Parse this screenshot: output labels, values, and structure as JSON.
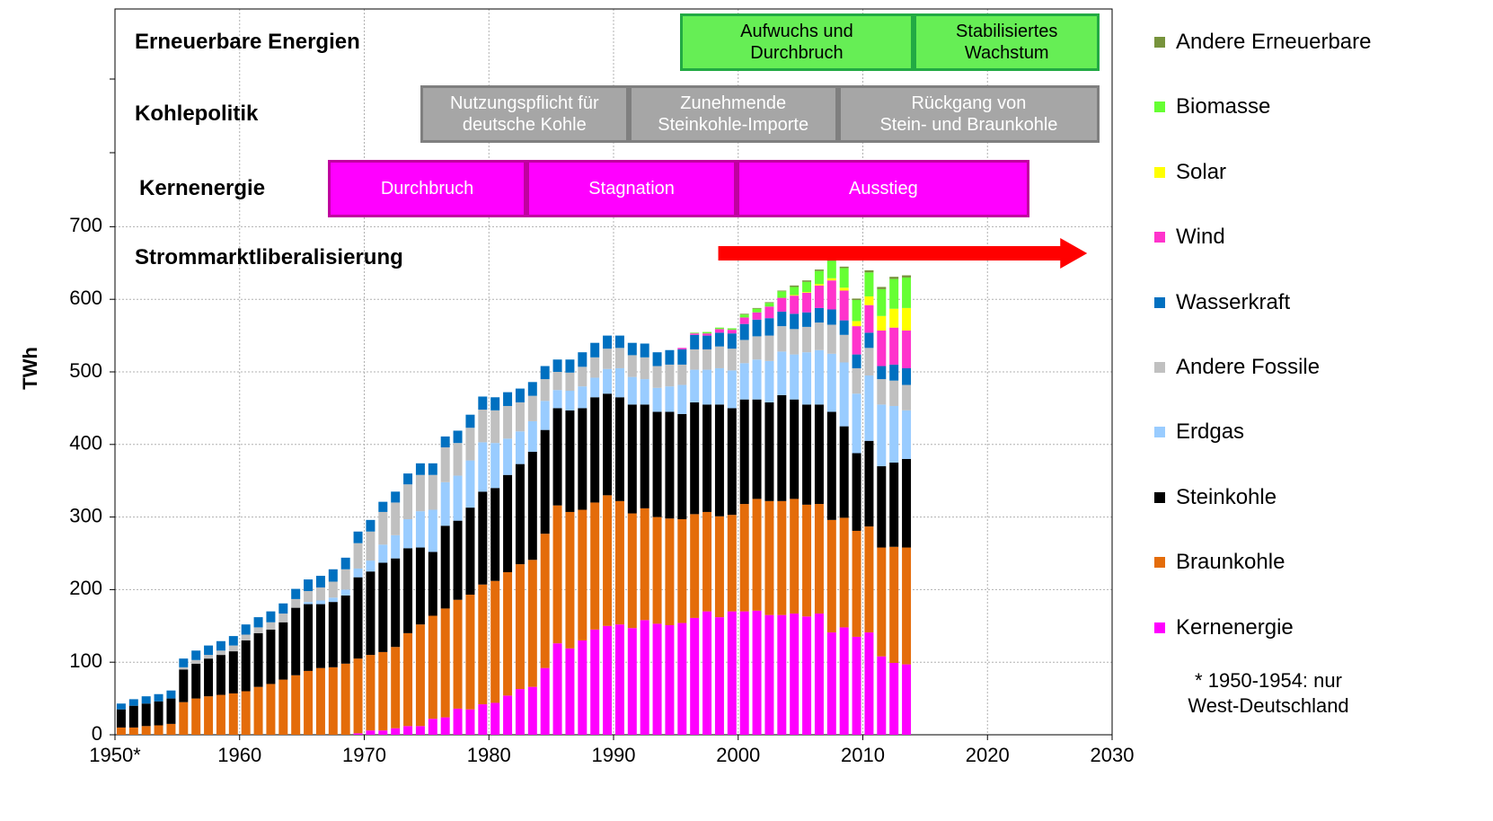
{
  "chart_data": {
    "type": "bar",
    "stacked": true,
    "y_label": "TWh",
    "xlim": [
      1950,
      2030
    ],
    "xticks": [
      {
        "value": 1950,
        "label": "1950*"
      },
      1960,
      1970,
      1980,
      1990,
      2000,
      2010,
      2020,
      2030
    ],
    "ylim": [
      0,
      1000
    ],
    "yticks": [
      0,
      100,
      200,
      300,
      400,
      500,
      600,
      700
    ],
    "grid": true,
    "x": [
      1950,
      1951,
      1952,
      1953,
      1954,
      1955,
      1956,
      1957,
      1958,
      1959,
      1960,
      1961,
      1962,
      1963,
      1964,
      1965,
      1966,
      1967,
      1968,
      1969,
      1970,
      1971,
      1972,
      1973,
      1974,
      1975,
      1976,
      1977,
      1978,
      1979,
      1980,
      1981,
      1982,
      1983,
      1984,
      1985,
      1986,
      1987,
      1988,
      1989,
      1990,
      1991,
      1992,
      1993,
      1994,
      1995,
      1996,
      1997,
      1998,
      1999,
      2000,
      2001,
      2002,
      2003,
      2004,
      2005,
      2006,
      2007,
      2008,
      2009,
      2010,
      2011,
      2012,
      2013
    ],
    "series": [
      {
        "name": "Kernenergie",
        "color": "#ff00ff",
        "values": [
          0,
          0,
          0,
          0,
          0,
          0,
          0,
          0,
          0,
          0,
          0,
          0,
          0,
          0,
          0,
          0,
          0,
          0,
          0,
          2,
          6,
          6,
          9,
          12,
          12,
          22,
          24,
          36,
          35,
          42,
          44,
          54,
          63,
          66,
          92,
          126,
          119,
          130,
          145,
          150,
          152,
          147,
          158,
          153,
          151,
          154,
          161,
          170,
          162,
          170,
          170,
          171,
          165,
          165,
          167,
          163,
          167,
          141,
          148,
          135,
          141,
          108,
          99,
          97
        ]
      },
      {
        "name": "Braunkohle",
        "color": "#e46c0a",
        "values": [
          10,
          10,
          12,
          13,
          15,
          45,
          50,
          53,
          55,
          57,
          60,
          66,
          70,
          76,
          82,
          88,
          92,
          93,
          98,
          103,
          104,
          108,
          112,
          128,
          140,
          142,
          150,
          150,
          158,
          165,
          168,
          170,
          172,
          175,
          185,
          190,
          188,
          180,
          175,
          180,
          170,
          158,
          154,
          147,
          147,
          143,
          143,
          137,
          139,
          133,
          148,
          154,
          157,
          157,
          158,
          154,
          151,
          155,
          151,
          146,
          146,
          150,
          160,
          161
        ]
      },
      {
        "name": "Steinkohle",
        "color": "#000000",
        "values": [
          25,
          30,
          31,
          33,
          35,
          45,
          48,
          52,
          55,
          58,
          70,
          74,
          75,
          79,
          93,
          92,
          88,
          90,
          94,
          112,
          115,
          123,
          122,
          117,
          106,
          88,
          114,
          109,
          120,
          128,
          128,
          134,
          138,
          149,
          143,
          134,
          140,
          140,
          145,
          140,
          143,
          150,
          143,
          145,
          147,
          145,
          154,
          148,
          154,
          147,
          144,
          137,
          136,
          146,
          137,
          138,
          137,
          149,
          126,
          107,
          118,
          112,
          116,
          122
        ]
      },
      {
        "name": "Erdgas",
        "color": "#99ccff",
        "values": [
          0,
          0,
          0,
          0,
          0,
          0,
          0,
          0,
          0,
          0,
          0,
          0,
          0,
          0,
          0,
          3,
          5,
          6,
          8,
          12,
          15,
          25,
          32,
          40,
          50,
          58,
          60,
          62,
          65,
          68,
          62,
          50,
          45,
          42,
          40,
          25,
          27,
          30,
          27,
          34,
          40,
          38,
          35,
          33,
          35,
          40,
          45,
          48,
          50,
          52,
          50,
          55,
          57,
          60,
          62,
          72,
          75,
          80,
          88,
          82,
          90,
          85,
          78,
          67
        ]
      },
      {
        "name": "Andere Fossile",
        "color": "#c0c0c0",
        "values": [
          0,
          0,
          0,
          0,
          0,
          3,
          5,
          5,
          6,
          8,
          8,
          8,
          10,
          12,
          12,
          15,
          18,
          22,
          28,
          35,
          40,
          45,
          45,
          48,
          50,
          48,
          48,
          45,
          45,
          45,
          45,
          45,
          40,
          35,
          30,
          25,
          25,
          27,
          28,
          28,
          28,
          30,
          30,
          30,
          30,
          28,
          28,
          28,
          30,
          30,
          32,
          32,
          35,
          35,
          35,
          35,
          38,
          40,
          38,
          35,
          38,
          35,
          35,
          35
        ]
      },
      {
        "name": "Wasserkraft",
        "color": "#0070c0",
        "values": [
          8,
          9,
          10,
          10,
          11,
          12,
          13,
          13,
          13,
          13,
          14,
          14,
          15,
          14,
          14,
          16,
          16,
          17,
          16,
          16,
          16,
          14,
          15,
          15,
          16,
          16,
          15,
          17,
          18,
          18,
          18,
          19,
          19,
          19,
          18,
          17,
          18,
          20,
          20,
          18,
          17,
          17,
          19,
          19,
          20,
          21,
          20,
          19,
          19,
          21,
          22,
          23,
          24,
          20,
          21,
          20,
          20,
          21,
          20,
          19,
          21,
          18,
          22,
          23
        ]
      },
      {
        "name": "Wind",
        "color": "#ff33cc",
        "values": [
          0,
          0,
          0,
          0,
          0,
          0,
          0,
          0,
          0,
          0,
          0,
          0,
          0,
          0,
          0,
          0,
          0,
          0,
          0,
          0,
          0,
          0,
          0,
          0,
          0,
          0,
          0,
          0,
          0,
          0,
          0,
          0,
          0,
          0,
          0,
          0,
          0,
          0,
          0,
          0,
          0,
          0,
          0,
          0,
          0,
          2,
          2,
          3,
          5,
          5,
          9,
          10,
          16,
          19,
          25,
          27,
          31,
          40,
          41,
          39,
          38,
          49,
          51,
          52
        ]
      },
      {
        "name": "Solar",
        "color": "#ffff00",
        "values": [
          0,
          0,
          0,
          0,
          0,
          0,
          0,
          0,
          0,
          0,
          0,
          0,
          0,
          0,
          0,
          0,
          0,
          0,
          0,
          0,
          0,
          0,
          0,
          0,
          0,
          0,
          0,
          0,
          0,
          0,
          0,
          0,
          0,
          0,
          0,
          0,
          0,
          0,
          0,
          0,
          0,
          0,
          0,
          0,
          0,
          0,
          0,
          0,
          0,
          0,
          0,
          0,
          0,
          0,
          1,
          1,
          2,
          3,
          4,
          7,
          12,
          20,
          26,
          31
        ]
      },
      {
        "name": "Biomasse",
        "color": "#66ff33",
        "values": [
          0,
          0,
          0,
          0,
          0,
          0,
          0,
          0,
          0,
          0,
          0,
          0,
          0,
          0,
          0,
          0,
          0,
          0,
          0,
          0,
          0,
          0,
          0,
          0,
          0,
          0,
          0,
          0,
          0,
          0,
          0,
          0,
          0,
          0,
          0,
          0,
          0,
          0,
          0,
          0,
          0,
          0,
          0,
          0,
          0,
          0,
          1,
          2,
          2,
          2,
          4,
          5,
          5,
          9,
          11,
          14,
          18,
          24,
          27,
          29,
          33,
          37,
          41,
          42
        ]
      },
      {
        "name": "Andere Erneuerbare",
        "color": "#77933c",
        "values": [
          0,
          0,
          0,
          0,
          0,
          0,
          0,
          0,
          0,
          0,
          0,
          0,
          0,
          0,
          0,
          0,
          0,
          0,
          0,
          0,
          0,
          0,
          0,
          0,
          0,
          0,
          0,
          0,
          0,
          0,
          0,
          0,
          0,
          0,
          0,
          0,
          0,
          0,
          0,
          0,
          0,
          0,
          0,
          0,
          0,
          0,
          0,
          0,
          0,
          0,
          1,
          1,
          1,
          1,
          2,
          2,
          2,
          2,
          2,
          2,
          3,
          3,
          3,
          3
        ]
      }
    ],
    "phase_rows": [
      {
        "label": "Erneuerbare Energien",
        "color": "#66ee55",
        "border": "#22aa44",
        "text_color": "#000000",
        "phases": [
          {
            "label": "Aufwuchs und\nDurchbruch",
            "start": 1995.3,
            "end": 2014.1
          },
          {
            "label": "Stabilisiertes\nWachstum",
            "start": 2014.1,
            "end": 2029
          }
        ]
      },
      {
        "label": "Kohlepolitik",
        "color": "#a6a6a6",
        "border": "#7f7f7f",
        "text_color": "#ffffff",
        "phases": [
          {
            "label": "Nutzungspflicht für\ndeutsche Kohle",
            "start": 1974.5,
            "end": 1991.2
          },
          {
            "label": "Zunehmende\nSteinkohle-Importe",
            "start": 1991.2,
            "end": 2008
          },
          {
            "label": "Rückgang von\nStein- und Braunkohle",
            "start": 2008,
            "end": 2029
          }
        ]
      },
      {
        "label": "Kernenergie",
        "color": "#ff00ff",
        "border": "#c000a0",
        "text_color": "#ffffff",
        "phases": [
          {
            "label": "Durchbruch",
            "start": 1967.1,
            "end": 1983
          },
          {
            "label": "Stagnation",
            "start": 1983,
            "end": 1999.9
          },
          {
            "label": "Ausstieg",
            "start": 1999.9,
            "end": 2023.4
          }
        ]
      }
    ],
    "arrow_row": {
      "label": "Strommarktliberalisierung",
      "color": "#ff0000",
      "start": 1998.4,
      "end": 2028
    },
    "footnote": "* 1950-1954: nur\nWest-Deutschland"
  }
}
